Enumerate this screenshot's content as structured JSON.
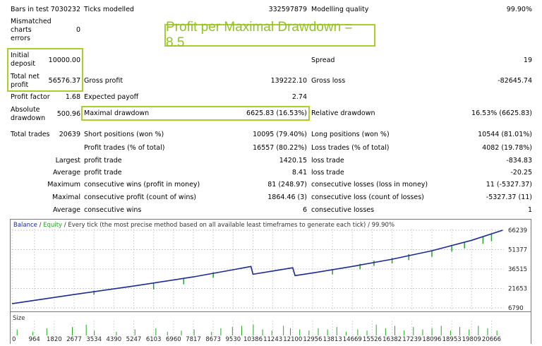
{
  "banner": "Profit per Maximal Drawdown = 8.5",
  "report": {
    "bars_in_test": {
      "label": "Bars in test",
      "value": "7030232"
    },
    "ticks_modelled": {
      "label": "Ticks modelled",
      "value": "332597879"
    },
    "modelling_quality": {
      "label": "Modelling quality",
      "value": "99.90%"
    },
    "mismatched": {
      "label1": "Mismatched",
      "label2": "charts",
      "label3": "errors",
      "value": "0"
    },
    "initial_deposit": {
      "label1": "Initial",
      "label2": "deposit",
      "value": "10000.00"
    },
    "spread": {
      "label": "Spread",
      "value": "19"
    },
    "total_net_profit": {
      "label1": "Total net",
      "label2": "profit",
      "value": "56576.37"
    },
    "gross_profit": {
      "label": "Gross profit",
      "value": "139222.10"
    },
    "gross_loss": {
      "label": "Gross loss",
      "value": "-82645.74"
    },
    "profit_factor": {
      "label": "Profit factor",
      "value": "1.68"
    },
    "expected_payoff": {
      "label": "Expected payoff",
      "value": "2.74"
    },
    "absolute_drawdown": {
      "label1": "Absolute",
      "label2": "drawdown",
      "value": "500.96"
    },
    "maximal_drawdown": {
      "label": "Maximal drawdown",
      "value": "6625.83 (16.53%)"
    },
    "relative_drawdown": {
      "label": "Relative drawdown",
      "value": "16.53% (6625.83)"
    },
    "total_trades": {
      "label": "Total trades",
      "value": "20639"
    },
    "short_positions": {
      "label": "Short positions (won %)",
      "value": "10095 (79.40%)"
    },
    "long_positions": {
      "label": "Long positions (won %)",
      "value": "10544 (81.01%)"
    },
    "profit_trades": {
      "label": "Profit trades (% of total)",
      "value": "16557 (80.22%)"
    },
    "loss_trades": {
      "label": "Loss trades (% of total)",
      "value": "4082 (19.78%)"
    },
    "largest": {
      "prefix": "Largest",
      "profit_label": "profit trade",
      "profit_value": "1420.15",
      "loss_label": "loss trade",
      "loss_value": "-834.83"
    },
    "average": {
      "prefix": "Average",
      "profit_label": "profit trade",
      "profit_value": "8.41",
      "loss_label": "loss trade",
      "loss_value": "-20.25"
    },
    "maximum": {
      "prefix": "Maximum",
      "wins_label": "consecutive wins (profit in money)",
      "wins_value": "81 (248.97)",
      "losses_label": "consecutive losses (loss in money)",
      "losses_value": "11 (-5327.37)"
    },
    "maximal": {
      "prefix": "Maximal",
      "wins_label": "consecutive profit (count of wins)",
      "wins_value": "1864.46 (3)",
      "losses_label": "consecutive loss (count of losses)",
      "losses_value": "-5327.37 (11)"
    },
    "average_consec": {
      "prefix": "Average",
      "wins_label": "consecutive wins",
      "wins_value": "6",
      "losses_label": "consecutive losses",
      "losses_value": "1"
    }
  },
  "chart_data": {
    "type": "line",
    "legend": {
      "balance": "Balance",
      "sep": " / ",
      "equity": "Equity",
      "rest": " / Every tick (the most precise method based on all available least timeframes to generate each tick) / 99.90%"
    },
    "colors": {
      "balance": "#1a2a9a",
      "equity": "#2aa02a",
      "size": "#22aa22",
      "axis": "#606060"
    },
    "y_ticks": [
      "66239",
      "51377",
      "36515",
      "21653",
      "6790"
    ],
    "ylim": [
      6790,
      66239
    ],
    "x_ticks": [
      "0",
      "964",
      "1820",
      "2677",
      "3534",
      "4390",
      "5247",
      "6103",
      "6960",
      "7817",
      "8673",
      "9530",
      "10386",
      "11243",
      "12100",
      "12956",
      "13813",
      "14669",
      "15526",
      "16382",
      "17239",
      "18096",
      "18953",
      "19809",
      "20666"
    ],
    "xlim": [
      0,
      21200
    ],
    "balance": [
      [
        0,
        10000
      ],
      [
        2677,
        17000
      ],
      [
        5247,
        23500
      ],
      [
        7817,
        30500
      ],
      [
        9530,
        36000
      ],
      [
        10300,
        38500
      ],
      [
        10386,
        32500
      ],
      [
        11243,
        35000
      ],
      [
        12100,
        37500
      ],
      [
        12200,
        31500
      ],
      [
        12956,
        33500
      ],
      [
        14669,
        38500
      ],
      [
        16382,
        44000
      ],
      [
        18096,
        50500
      ],
      [
        19809,
        58500
      ],
      [
        21150,
        66239
      ]
    ],
    "equity_dips": [
      [
        3534,
        20000,
        19000
      ],
      [
        6103,
        26000,
        23000
      ],
      [
        7400,
        29000,
        27000
      ],
      [
        8673,
        34000,
        32000
      ],
      [
        13813,
        36000,
        34500
      ],
      [
        15000,
        40500,
        38500
      ],
      [
        15600,
        43000,
        41000
      ],
      [
        16382,
        45000,
        43000
      ],
      [
        17100,
        48000,
        45500
      ],
      [
        18096,
        51000,
        48000
      ],
      [
        18953,
        55000,
        52000
      ],
      [
        19500,
        57000,
        54500
      ],
      [
        20300,
        61000,
        58000
      ],
      [
        20666,
        63000,
        60000
      ]
    ],
    "size_label": "Size",
    "size_bars": [
      [
        220,
        0.5
      ],
      [
        900,
        0.3
      ],
      [
        1500,
        0.6
      ],
      [
        2600,
        0.7
      ],
      [
        3200,
        0.9
      ],
      [
        3550,
        0.4
      ],
      [
        4500,
        0.3
      ],
      [
        5300,
        0.5
      ],
      [
        6200,
        0.6
      ],
      [
        6700,
        0.3
      ],
      [
        7300,
        0.4
      ],
      [
        7850,
        0.5
      ],
      [
        8600,
        0.3
      ],
      [
        9000,
        0.6
      ],
      [
        9500,
        0.7
      ],
      [
        9900,
        0.8
      ],
      [
        10400,
        0.9
      ],
      [
        10800,
        0.5
      ],
      [
        11200,
        0.4
      ],
      [
        11700,
        0.8
      ],
      [
        12000,
        0.6
      ],
      [
        12400,
        0.5
      ],
      [
        12800,
        0.4
      ],
      [
        13200,
        0.6
      ],
      [
        13600,
        0.5
      ],
      [
        14000,
        0.7
      ],
      [
        14400,
        0.3
      ],
      [
        14900,
        0.5
      ],
      [
        15300,
        0.4
      ],
      [
        15700,
        0.9
      ],
      [
        16100,
        0.6
      ],
      [
        16500,
        0.8
      ],
      [
        16900,
        0.4
      ],
      [
        17300,
        0.7
      ],
      [
        17700,
        0.5
      ],
      [
        18100,
        0.6
      ],
      [
        18500,
        0.8
      ],
      [
        18900,
        0.4
      ],
      [
        19300,
        0.7
      ],
      [
        19700,
        0.5
      ],
      [
        20100,
        0.8
      ],
      [
        20500,
        0.6
      ],
      [
        20900,
        0.4
      ]
    ]
  }
}
